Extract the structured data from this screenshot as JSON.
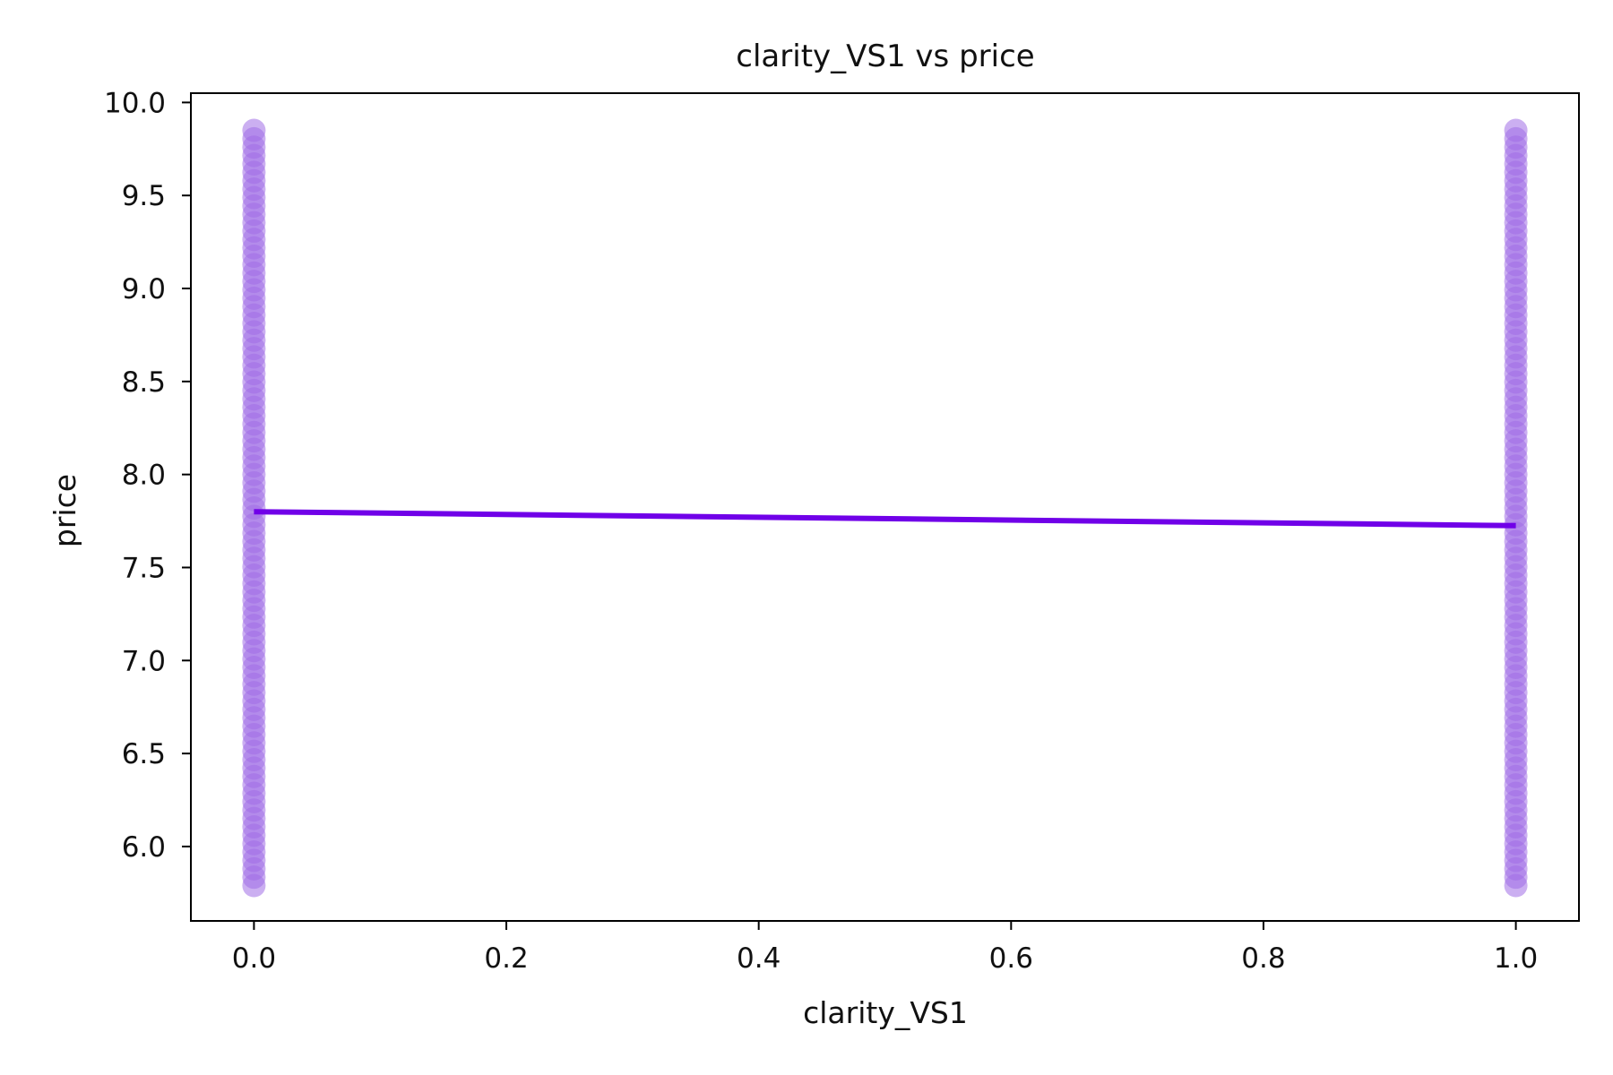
{
  "chart_data": {
    "type": "scatter",
    "title": "clarity_VS1 vs price",
    "xlabel": "clarity_VS1",
    "ylabel": "price",
    "xlim": [
      -0.05,
      1.05
    ],
    "ylim": [
      5.6,
      10.05
    ],
    "x_ticks": [
      0.0,
      0.2,
      0.4,
      0.6,
      0.8,
      1.0
    ],
    "x_tick_labels": [
      "0.0",
      "0.2",
      "0.4",
      "0.6",
      "0.8",
      "1.0"
    ],
    "y_ticks": [
      6.0,
      6.5,
      7.0,
      7.5,
      8.0,
      8.5,
      9.0,
      9.5,
      10.0
    ],
    "y_tick_labels": [
      "6.0",
      "6.5",
      "7.0",
      "7.5",
      "8.0",
      "8.5",
      "9.0",
      "9.5",
      "10.0"
    ],
    "grid": false,
    "series": [
      {
        "type": "scatter",
        "color": "#a06ee6",
        "groups": [
          {
            "x": 0.0,
            "y_min": 5.79,
            "y_max": 9.85
          },
          {
            "x": 1.0,
            "y_min": 5.79,
            "y_max": 9.85
          }
        ]
      },
      {
        "type": "line",
        "color": "#7000e8",
        "x": [
          0.0,
          1.0
        ],
        "y": [
          7.8,
          7.725
        ]
      }
    ]
  }
}
